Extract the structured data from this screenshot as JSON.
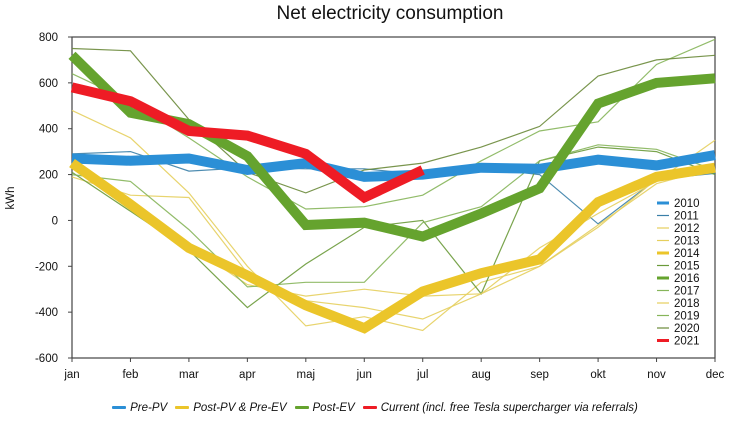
{
  "chart_data": {
    "type": "line",
    "title": "Net electricity consumption",
    "xlabel": "",
    "ylabel": "kWh",
    "ylim": [
      -600,
      800
    ],
    "yticks": [
      800,
      600,
      400,
      200,
      0,
      -200,
      -400,
      -600
    ],
    "categories": [
      "jan",
      "feb",
      "mar",
      "apr",
      "maj",
      "jun",
      "jul",
      "aug",
      "sep",
      "okt",
      "nov",
      "dec"
    ],
    "grid": false,
    "legend_placement": "right",
    "series": [
      {
        "name": "2010",
        "group": "Pre-PV",
        "color": "#2b8fd6",
        "weight": "thick",
        "values": [
          270,
          260,
          270,
          220,
          250,
          190,
          200,
          230,
          225,
          265,
          240,
          285
        ]
      },
      {
        "name": "2011",
        "group": "Pre-PV",
        "color": "#3a7fa8",
        "weight": "thin",
        "values": [
          290,
          300,
          215,
          230,
          225,
          225,
          200,
          230,
          200,
          -15,
          180,
          205
        ]
      },
      {
        "name": "2012",
        "group": "Post-PV & Pre-EV",
        "color": "#e6cf5e",
        "weight": "thin",
        "values": [
          480,
          360,
          120,
          -200,
          -460,
          -420,
          -480,
          -270,
          -200,
          -20,
          160,
          230
        ]
      },
      {
        "name": "2013",
        "group": "Post-PV & Pre-EV",
        "color": "#e6cf5e",
        "weight": "thin",
        "values": [
          190,
          110,
          100,
          -230,
          -350,
          -380,
          -430,
          -320,
          -200,
          -30,
          180,
          220
        ]
      },
      {
        "name": "2014",
        "group": "Post-PV & Pre-EV",
        "color": "#ebc52a",
        "weight": "thick",
        "values": [
          250,
          70,
          -120,
          -240,
          -370,
          -470,
          -310,
          -230,
          -170,
          80,
          190,
          230
        ]
      },
      {
        "name": "2015",
        "group": "Post-EV",
        "color": "#6a9a3a",
        "weight": "thin",
        "values": [
          210,
          40,
          -130,
          -380,
          -190,
          -30,
          0,
          -320,
          260,
          320,
          300,
          200
        ]
      },
      {
        "name": "2016",
        "group": "Post-EV",
        "color": "#65a32e",
        "weight": "thick",
        "values": [
          720,
          470,
          420,
          280,
          -20,
          -10,
          -70,
          30,
          140,
          510,
          600,
          620
        ]
      },
      {
        "name": "2017",
        "group": "Post-EV",
        "color": "#86b55a",
        "weight": "thin",
        "values": [
          640,
          520,
          360,
          190,
          50,
          60,
          110,
          260,
          390,
          430,
          680,
          790
        ]
      },
      {
        "name": "2018",
        "group": "Post-PV & Pre-EV",
        "color": "#e6cf5e",
        "weight": "thin",
        "values": [
          230,
          60,
          -110,
          -280,
          -330,
          -300,
          -330,
          -320,
          -120,
          30,
          170,
          350
        ]
      },
      {
        "name": "2019",
        "group": "Post-EV",
        "color": "#86b55a",
        "weight": "thin",
        "values": [
          200,
          170,
          -40,
          -290,
          -270,
          -270,
          -10,
          60,
          260,
          330,
          310,
          220
        ]
      },
      {
        "name": "2020",
        "group": "Post-EV",
        "color": "#6a8a3a",
        "weight": "thin",
        "values": [
          750,
          740,
          440,
          210,
          120,
          220,
          250,
          320,
          410,
          630,
          700,
          720
        ]
      },
      {
        "name": "2021",
        "group": "Current",
        "color": "#ee1c25",
        "weight": "thick",
        "values": [
          580,
          520,
          390,
          370,
          290,
          100,
          220,
          null,
          null,
          null,
          null,
          null
        ]
      }
    ],
    "group_legend": [
      {
        "label": "Pre-PV",
        "color": "#2b8fd6"
      },
      {
        "label": "Post-PV & Pre-EV",
        "color": "#ebc52a"
      },
      {
        "label": "Post-EV",
        "color": "#65a32e"
      },
      {
        "label": "Current (incl. free Tesla supercharger via referrals)",
        "color": "#ee1c25"
      }
    ]
  }
}
